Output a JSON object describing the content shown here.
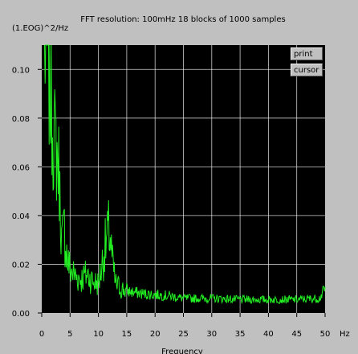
{
  "controls": {
    "print_label": "print",
    "cursor_label": "cursor"
  },
  "colors": {
    "background": "#c0c0c0",
    "plot_background": "#000000",
    "grid": "#ffffff",
    "trace": "#22ee22"
  },
  "chart_data": {
    "type": "line",
    "title": "FFT resolution: 100mHz   18 blocks of 1000 samples",
    "ylabel": "(1.EOG)^2/Hz",
    "xlabel": "Frequency",
    "x_unit": "Hz",
    "xlim": [
      0,
      50
    ],
    "ylim": [
      0,
      0.11
    ],
    "x_ticks": [
      0,
      5,
      10,
      15,
      20,
      25,
      30,
      35,
      40,
      45,
      50
    ],
    "x_tick_labels": [
      "0",
      "5",
      "10",
      "15",
      "20",
      "25",
      "30",
      "35",
      "40",
      "45",
      "50"
    ],
    "y_ticks": [
      0.0,
      0.02,
      0.04,
      0.06,
      0.08,
      0.1
    ],
    "y_tick_labels": [
      "0.00",
      "0.02",
      "0.04",
      "0.06",
      "0.08",
      "0.10"
    ],
    "grid": true,
    "series": [
      {
        "x": [
          0.5,
          1.0,
          1.5,
          2.0,
          2.5,
          3.0,
          3.5,
          4.0,
          4.5,
          5.0,
          6.0,
          7.0,
          8.0,
          9.0,
          10.0,
          10.5,
          11.0,
          11.5,
          12.0,
          12.5,
          13.0,
          14.0,
          15.0,
          17.5,
          20.0,
          22.5,
          25.0,
          30.0,
          35.0,
          40.0,
          45.0,
          49.0,
          50.0
        ],
        "y": [
          0.11,
          0.108,
          0.092,
          0.075,
          0.068,
          0.06,
          0.03,
          0.035,
          0.022,
          0.018,
          0.015,
          0.014,
          0.016,
          0.013,
          0.012,
          0.018,
          0.025,
          0.03,
          0.034,
          0.02,
          0.012,
          0.01,
          0.009,
          0.008,
          0.0075,
          0.007,
          0.006,
          0.006,
          0.0055,
          0.0055,
          0.0055,
          0.006,
          0.01
        ]
      }
    ]
  }
}
